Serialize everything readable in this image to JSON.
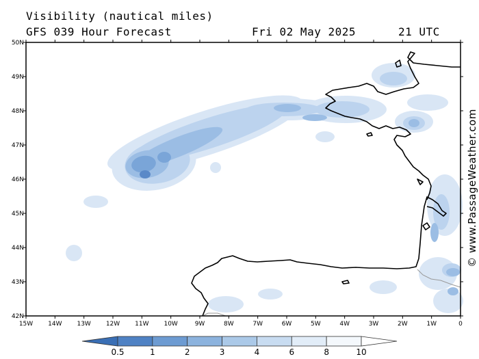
{
  "header": {
    "title": "Visibility (nautical miles)",
    "forecast": "GFS 039 Hour Forecast",
    "date": "Fri 02 May 2025",
    "time": "21 UTC"
  },
  "credit": "© www.PassageWeather.com",
  "map": {
    "lat_labels": [
      "50N",
      "49N",
      "48N",
      "47N",
      "46N",
      "45N",
      "44N",
      "43N",
      "42N"
    ],
    "lon_labels": [
      "15W",
      "14W",
      "13W",
      "12W",
      "11W",
      "10W",
      "9W",
      "8W",
      "7W",
      "6W",
      "5W",
      "4W",
      "3W",
      "2W",
      "1W",
      "0"
    ],
    "lat_range": [
      42,
      50
    ],
    "lon_range": [
      -15,
      0
    ],
    "coastline_color": "#000000",
    "border_color": "#999999"
  },
  "legend": {
    "labels": [
      "0.5",
      "1",
      "2",
      "3",
      "4",
      "6",
      "8",
      "10"
    ],
    "colors": [
      "#3a6fb5",
      "#4f82c4",
      "#6d9bd2",
      "#8cb3de",
      "#abc9e8",
      "#c8dcf1",
      "#e2edf8",
      "#f4f8fc",
      "#ffffff"
    ]
  },
  "fog_shades": [
    "#5a89c8",
    "#7aa5d8",
    "#9bbde4",
    "#bcd3ee",
    "#d9e6f5"
  ]
}
